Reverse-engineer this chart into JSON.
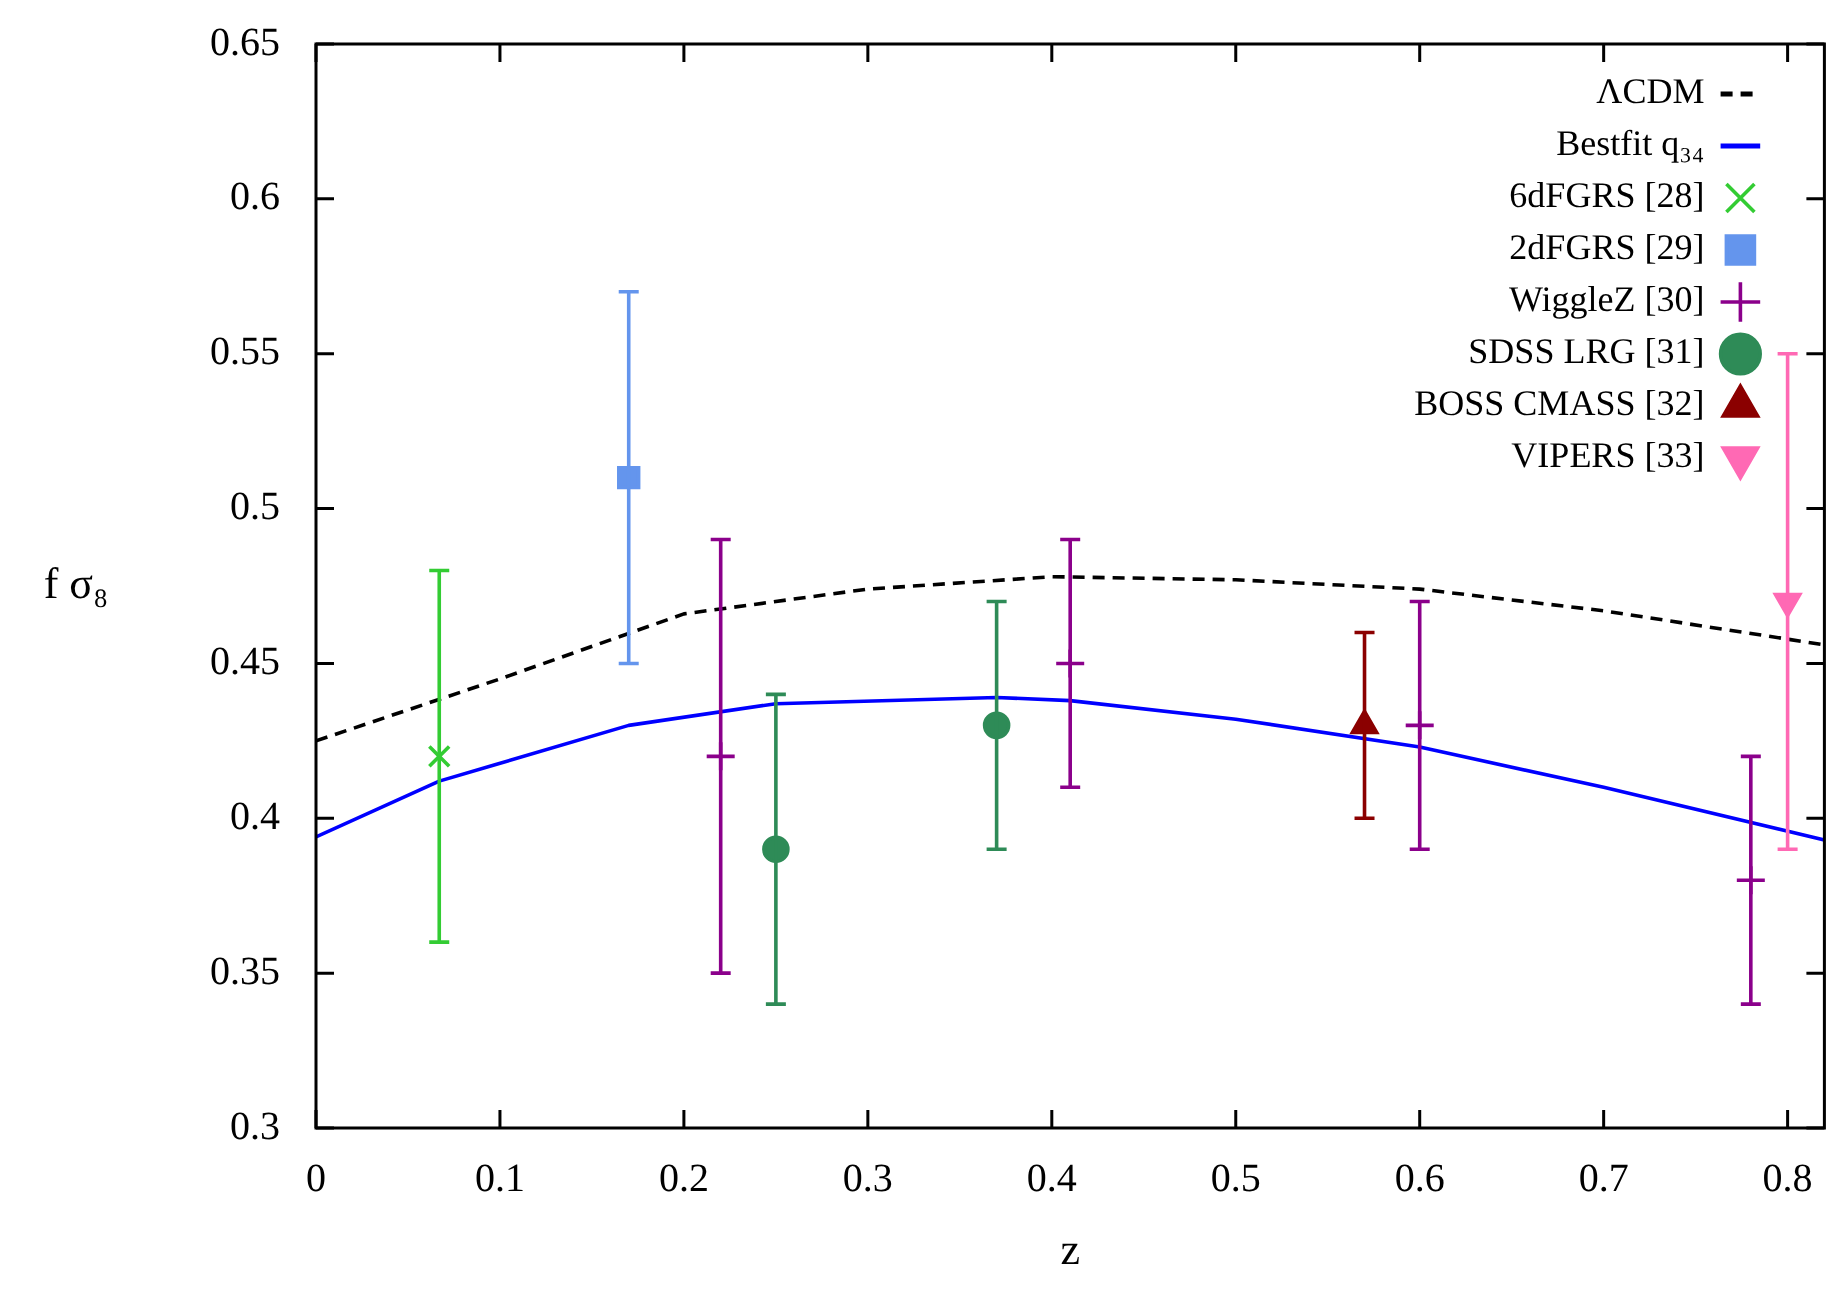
{
  "chart_data": {
    "type": "scatter",
    "xlabel": "z",
    "ylabel": "f σ₈",
    "xlim": [
      0,
      0.82
    ],
    "ylim": [
      0.3,
      0.65
    ],
    "xticks": [
      0,
      0.1,
      0.2,
      0.3,
      0.4,
      0.5,
      0.6,
      0.7,
      0.8
    ],
    "yticks": [
      0.3,
      0.35,
      0.4,
      0.45,
      0.5,
      0.55,
      0.6,
      0.65
    ],
    "grid": false,
    "legend": "top right",
    "series": [
      {
        "name": "ΛCDM",
        "type": "line",
        "color": "#000000",
        "line_style": "dashed",
        "marker": "none",
        "x": [
          0,
          0.1,
          0.2,
          0.3,
          0.4,
          0.5,
          0.6,
          0.7,
          0.82
        ],
        "values": [
          0.425,
          0.445,
          0.466,
          0.474,
          0.478,
          0.477,
          0.474,
          0.467,
          0.456
        ]
      },
      {
        "name": "Bestfit q₃₄",
        "type": "line",
        "color": "#0000ff",
        "line_style": "solid",
        "marker": "none",
        "x": [
          0,
          0.067,
          0.17,
          0.25,
          0.37,
          0.41,
          0.5,
          0.6,
          0.7,
          0.82
        ],
        "values": [
          0.394,
          0.412,
          0.43,
          0.437,
          0.439,
          0.438,
          0.432,
          0.423,
          0.41,
          0.393
        ]
      },
      {
        "name": "6dFGRS [28]",
        "color": "#33cc33",
        "marker": "cross",
        "x": [
          0.067
        ],
        "values": [
          0.42
        ],
        "errors": [
          0.06
        ]
      },
      {
        "name": "2dFGRS [29]",
        "color": "#6495ed",
        "marker": "square",
        "x": [
          0.17
        ],
        "values": [
          0.51
        ],
        "errors": [
          0.06
        ]
      },
      {
        "name": "WiggleZ [30]",
        "color": "#8b008b",
        "marker": "plus",
        "x": [
          0.22,
          0.41,
          0.6,
          0.78
        ],
        "values": [
          0.42,
          0.45,
          0.43,
          0.38
        ],
        "errors": [
          0.07,
          0.04,
          0.04,
          0.04
        ]
      },
      {
        "name": "SDSS LRG [31]",
        "color": "#2e8b57",
        "marker": "circle",
        "x": [
          0.25,
          0.37
        ],
        "values": [
          0.39,
          0.43
        ],
        "errors": [
          0.05,
          0.04
        ]
      },
      {
        "name": "BOSS CMASS [32]",
        "color": "#8b0000",
        "marker": "triangle",
        "x": [
          0.57
        ],
        "values": [
          0.43
        ],
        "errors": [
          0.03
        ]
      },
      {
        "name": "VIPERS [33]",
        "color": "#ff69b4",
        "marker": "triangle-down",
        "x": [
          0.8
        ],
        "values": [
          0.47
        ],
        "errors": [
          0.08
        ]
      }
    ]
  }
}
